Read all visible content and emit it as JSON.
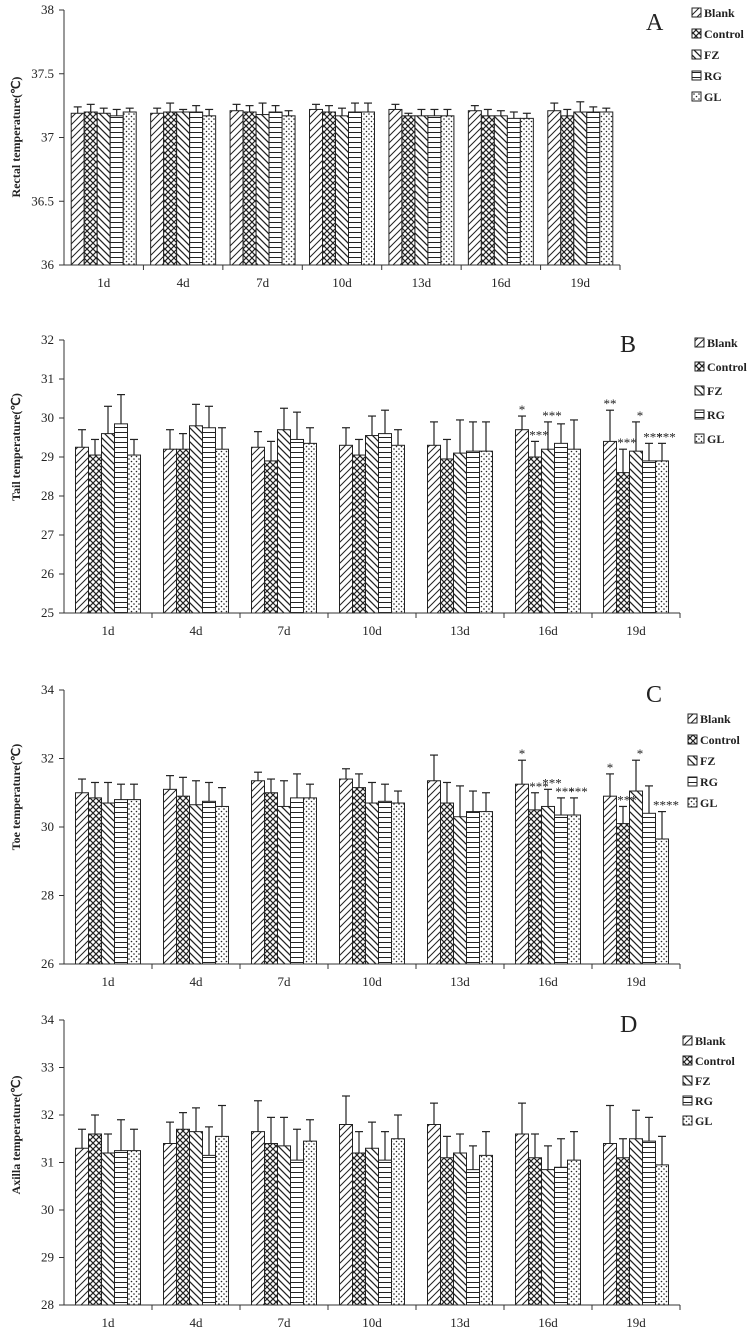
{
  "chart_data": [
    {
      "type": "bar",
      "panel": "A",
      "ylabel": "Rectal temperature(℃)",
      "ylim": [
        36,
        38
      ],
      "yticks": [
        "36",
        "36.5",
        "37",
        "37.5",
        "38"
      ],
      "categories": [
        "1d",
        "4d",
        "7d",
        "10d",
        "13d",
        "16d",
        "19d"
      ],
      "legend": [
        "Blank",
        "Control",
        "FZ",
        "RG",
        "GL"
      ],
      "series": [
        {
          "name": "Blank",
          "values": [
            37.19,
            37.19,
            37.21,
            37.22,
            37.22,
            37.21,
            37.21
          ],
          "errors": [
            0.05,
            0.04,
            0.05,
            0.04,
            0.04,
            0.04,
            0.06
          ]
        },
        {
          "name": "Control",
          "values": [
            37.2,
            37.2,
            37.2,
            37.2,
            37.17,
            37.17,
            37.17
          ],
          "errors": [
            0.06,
            0.07,
            0.05,
            0.05,
            0.02,
            0.05,
            0.05
          ]
        },
        {
          "name": "FZ",
          "values": [
            37.19,
            37.2,
            37.18,
            37.17,
            37.17,
            37.17,
            37.2
          ],
          "errors": [
            0.04,
            0.02,
            0.09,
            0.06,
            0.05,
            0.04,
            0.08
          ]
        },
        {
          "name": "RG",
          "values": [
            37.17,
            37.2,
            37.2,
            37.2,
            37.17,
            37.15,
            37.2
          ],
          "errors": [
            0.05,
            0.05,
            0.05,
            0.07,
            0.05,
            0.05,
            0.04
          ]
        },
        {
          "name": "GL",
          "values": [
            37.2,
            37.17,
            37.17,
            37.2,
            37.17,
            37.15,
            37.2
          ],
          "errors": [
            0.03,
            0.05,
            0.04,
            0.07,
            0.05,
            0.04,
            0.03
          ]
        }
      ],
      "annotations": []
    },
    {
      "type": "bar",
      "panel": "B",
      "ylabel": "Tail temperature(℃)",
      "ylim": [
        25,
        32
      ],
      "yticks": [
        "25",
        "26",
        "27",
        "28",
        "29",
        "30",
        "31",
        "32"
      ],
      "categories": [
        "1d",
        "4d",
        "7d",
        "10d",
        "13d",
        "16d",
        "19d"
      ],
      "legend": [
        "Blank",
        "Control",
        "FZ",
        "RG",
        "GL"
      ],
      "series": [
        {
          "name": "Blank",
          "values": [
            29.25,
            29.2,
            29.25,
            29.3,
            29.3,
            29.7,
            29.4
          ],
          "errors": [
            0.45,
            0.5,
            0.4,
            0.45,
            0.6,
            0.35,
            0.8
          ]
        },
        {
          "name": "Control",
          "values": [
            29.05,
            29.2,
            28.9,
            29.05,
            28.95,
            29.0,
            28.6
          ],
          "errors": [
            0.4,
            0.4,
            0.5,
            0.4,
            0.5,
            0.4,
            0.6
          ]
        },
        {
          "name": "FZ",
          "values": [
            29.6,
            29.8,
            29.7,
            29.55,
            29.1,
            29.2,
            29.15
          ],
          "errors": [
            0.7,
            0.55,
            0.55,
            0.5,
            0.85,
            0.7,
            0.75
          ]
        },
        {
          "name": "RG",
          "values": [
            29.85,
            29.75,
            29.45,
            29.6,
            29.15,
            29.35,
            28.9
          ],
          "errors": [
            0.75,
            0.55,
            0.7,
            0.6,
            0.75,
            0.5,
            0.45
          ]
        },
        {
          "name": "GL",
          "values": [
            29.05,
            29.2,
            29.35,
            29.3,
            29.15,
            29.2,
            28.9
          ],
          "errors": [
            0.4,
            0.55,
            0.4,
            0.4,
            0.75,
            0.75,
            0.45
          ]
        }
      ],
      "annotations": [
        {
          "day": "16d",
          "series": "Blank",
          "text": "*"
        },
        {
          "day": "16d",
          "series": "Control",
          "text": "***"
        },
        {
          "day": "16d",
          "series": "FZ",
          "text": "***"
        },
        {
          "day": "19d",
          "series": "Blank",
          "text": "**"
        },
        {
          "day": "19d",
          "series": "Control",
          "text": "***"
        },
        {
          "day": "19d",
          "series": "FZ",
          "text": "*"
        },
        {
          "day": "19d",
          "series": "RG",
          "text": "***"
        },
        {
          "day": "19d",
          "series": "GL",
          "text": "***"
        }
      ]
    },
    {
      "type": "bar",
      "panel": "C",
      "ylabel": "Toe temperature(℃)",
      "ylim": [
        26,
        34
      ],
      "yticks": [
        "26",
        "28",
        "30",
        "32",
        "34"
      ],
      "categories": [
        "1d",
        "4d",
        "7d",
        "10d",
        "13d",
        "16d",
        "19d"
      ],
      "legend": [
        "Blank",
        "Control",
        "FZ",
        "RG",
        "GL"
      ],
      "series": [
        {
          "name": "Blank",
          "values": [
            31.0,
            31.1,
            31.35,
            31.4,
            31.35,
            31.25,
            30.9
          ],
          "errors": [
            0.4,
            0.4,
            0.25,
            0.3,
            0.75,
            0.7,
            0.65
          ]
        },
        {
          "name": "Control",
          "values": [
            30.85,
            30.9,
            31.0,
            31.15,
            30.7,
            30.5,
            30.1
          ],
          "errors": [
            0.45,
            0.55,
            0.4,
            0.4,
            0.6,
            0.5,
            0.5
          ]
        },
        {
          "name": "FZ",
          "values": [
            30.7,
            30.65,
            30.6,
            30.7,
            30.3,
            30.6,
            31.05
          ],
          "errors": [
            0.6,
            0.7,
            0.75,
            0.6,
            0.9,
            0.5,
            0.9
          ]
        },
        {
          "name": "RG",
          "values": [
            30.8,
            30.75,
            30.85,
            30.75,
            30.45,
            30.35,
            30.4
          ],
          "errors": [
            0.45,
            0.55,
            0.7,
            0.5,
            0.6,
            0.5,
            0.8
          ]
        },
        {
          "name": "GL",
          "values": [
            30.8,
            30.6,
            30.85,
            30.7,
            30.45,
            30.35,
            29.65
          ],
          "errors": [
            0.45,
            0.55,
            0.4,
            0.35,
            0.55,
            0.5,
            0.8
          ]
        }
      ],
      "annotations": [
        {
          "day": "16d",
          "series": "Blank",
          "text": "*"
        },
        {
          "day": "16d",
          "series": "Control",
          "text": "***"
        },
        {
          "day": "16d",
          "series": "FZ",
          "text": "***"
        },
        {
          "day": "16d",
          "series": "RG",
          "text": "***"
        },
        {
          "day": "16d",
          "series": "GL",
          "text": "***"
        },
        {
          "day": "19d",
          "series": "Blank",
          "text": "*"
        },
        {
          "day": "19d",
          "series": "Control",
          "text": "***"
        },
        {
          "day": "19d",
          "series": "FZ",
          "text": "*"
        },
        {
          "day": "19d",
          "series": "GL",
          "text": "****"
        }
      ]
    },
    {
      "type": "bar",
      "panel": "D",
      "ylabel": "Axilla temperature(℃)",
      "ylim": [
        28,
        34
      ],
      "yticks": [
        "28",
        "29",
        "30",
        "31",
        "32",
        "33",
        "34"
      ],
      "categories": [
        "1d",
        "4d",
        "7d",
        "10d",
        "13d",
        "16d",
        "19d"
      ],
      "legend": [
        "Blank",
        "Control",
        "FZ",
        "RG",
        "GL"
      ],
      "series": [
        {
          "name": "Blank",
          "values": [
            31.3,
            31.4,
            31.65,
            31.8,
            31.8,
            31.6,
            31.4
          ],
          "errors": [
            0.4,
            0.45,
            0.65,
            0.6,
            0.45,
            0.65,
            0.8
          ]
        },
        {
          "name": "Control",
          "values": [
            31.6,
            31.7,
            31.4,
            31.2,
            31.1,
            31.1,
            31.1
          ],
          "errors": [
            0.4,
            0.35,
            0.55,
            0.45,
            0.45,
            0.5,
            0.4
          ]
        },
        {
          "name": "FZ",
          "values": [
            31.2,
            31.65,
            31.35,
            31.3,
            31.2,
            30.85,
            31.5
          ],
          "errors": [
            0.4,
            0.5,
            0.6,
            0.55,
            0.4,
            0.5,
            0.6
          ]
        },
        {
          "name": "RG",
          "values": [
            31.25,
            31.15,
            31.05,
            31.05,
            30.85,
            30.9,
            31.45
          ],
          "errors": [
            0.65,
            0.6,
            0.65,
            0.6,
            0.5,
            0.6,
            0.5
          ]
        },
        {
          "name": "GL",
          "values": [
            31.25,
            31.55,
            31.45,
            31.5,
            31.15,
            31.05,
            30.95
          ],
          "errors": [
            0.45,
            0.65,
            0.45,
            0.5,
            0.5,
            0.6,
            0.6
          ]
        }
      ],
      "annotations": []
    }
  ]
}
